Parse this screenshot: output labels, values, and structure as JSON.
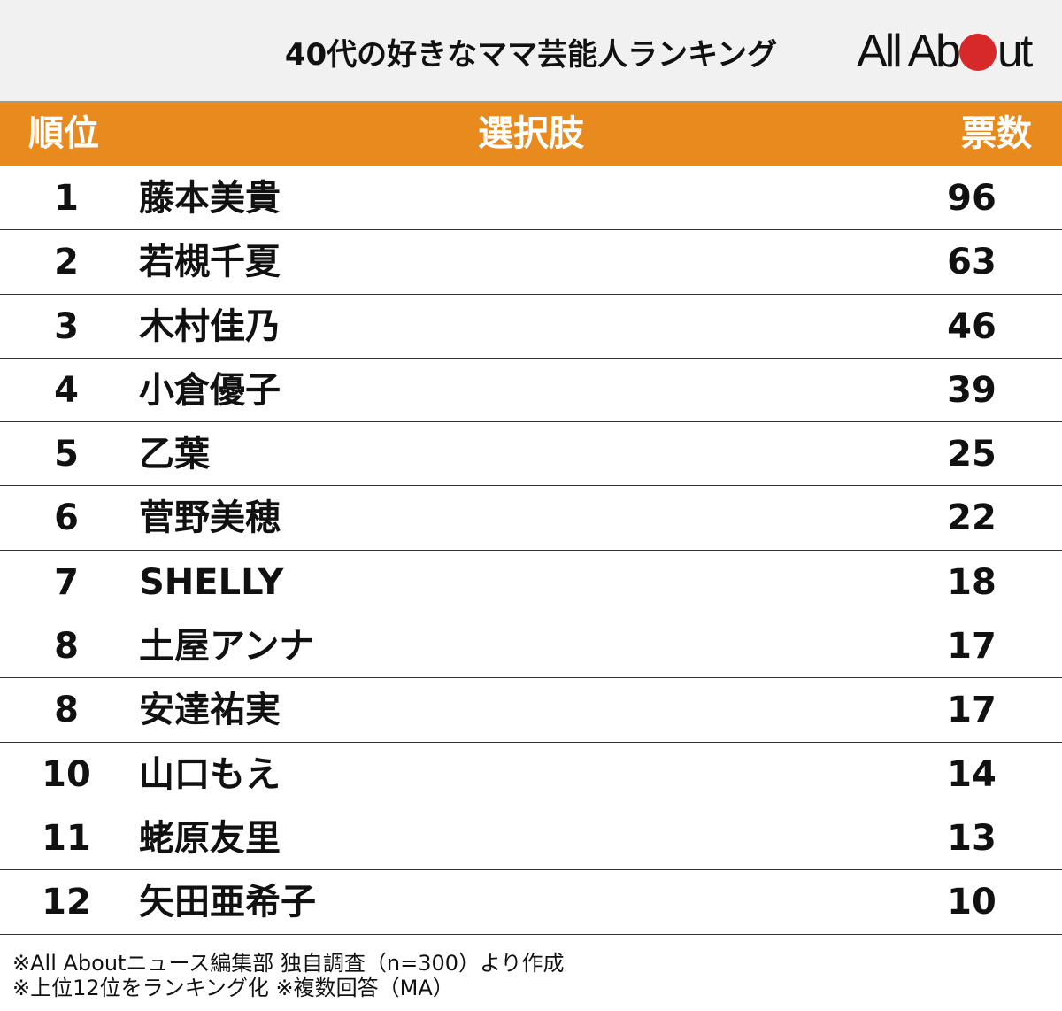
{
  "header": {
    "title": "40代の好きなママ芸能人ランキング",
    "logo_left": "All Ab",
    "logo_right": "ut"
  },
  "table": {
    "columns": [
      "順位",
      "選択肢",
      "票数"
    ],
    "rows": [
      {
        "rank": "1",
        "name": "藤本美貴",
        "votes": "96"
      },
      {
        "rank": "2",
        "name": "若槻千夏",
        "votes": "63"
      },
      {
        "rank": "3",
        "name": "木村佳乃",
        "votes": "46"
      },
      {
        "rank": "4",
        "name": "小倉優子",
        "votes": "39"
      },
      {
        "rank": "5",
        "name": "乙葉",
        "votes": "25"
      },
      {
        "rank": "6",
        "name": "菅野美穂",
        "votes": "22"
      },
      {
        "rank": "7",
        "name": "SHELLY",
        "votes": "18"
      },
      {
        "rank": "8",
        "name": "土屋アンナ",
        "votes": "17"
      },
      {
        "rank": "8",
        "name": "安達祐実",
        "votes": "17"
      },
      {
        "rank": "10",
        "name": "山口もえ",
        "votes": "14"
      },
      {
        "rank": "11",
        "name": "蛯原友里",
        "votes": "13"
      },
      {
        "rank": "12",
        "name": "矢田亜希子",
        "votes": "10"
      }
    ]
  },
  "footer": {
    "note1": "※All Aboutニュース編集部 独自調査（n=300）より作成",
    "note2": "※上位12位をランキング化 ※複数回答（MA）"
  },
  "colors": {
    "header_bg": "#e98a1f",
    "logo_dot": "#d7282a",
    "title_bg": "#f1f1f1"
  },
  "chart_data": {
    "type": "table",
    "title": "40代の好きなママ芸能人ランキング",
    "columns": [
      "順位",
      "選択肢",
      "票数"
    ],
    "categories": [
      "藤本美貴",
      "若槻千夏",
      "木村佳乃",
      "小倉優子",
      "乙葉",
      "菅野美穂",
      "SHELLY",
      "土屋アンナ",
      "安達祐実",
      "山口もえ",
      "蛯原友里",
      "矢田亜希子"
    ],
    "ranks": [
      1,
      2,
      3,
      4,
      5,
      6,
      7,
      8,
      8,
      10,
      11,
      12
    ],
    "values": [
      96,
      63,
      46,
      39,
      25,
      22,
      18,
      17,
      17,
      14,
      13,
      10
    ],
    "notes": [
      "※All Aboutニュース編集部 独自調査（n=300）より作成",
      "※上位12位をランキング化 ※複数回答（MA）"
    ]
  }
}
